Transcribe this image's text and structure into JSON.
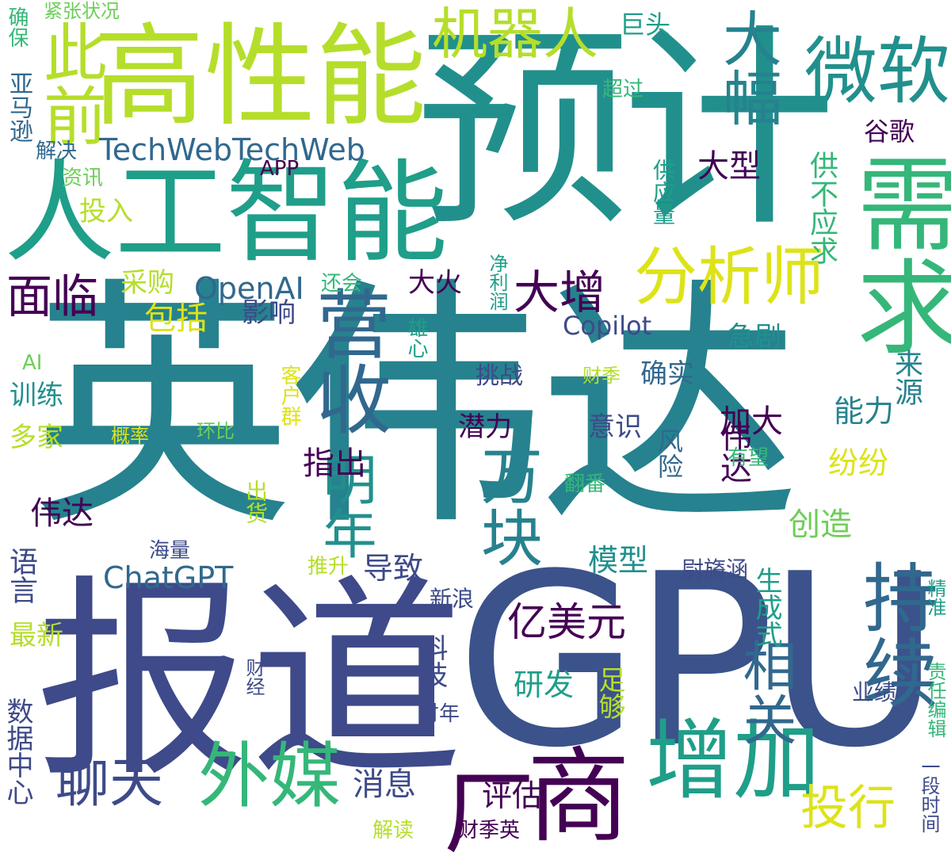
{
  "words": {
    "yingweida": "英伟达",
    "yuji": "预计",
    "gpu": "GPU",
    "baodao": "报道",
    "gaoxingneng": "高性能",
    "rengongzhineng": "人工智能",
    "xuqiu": "需求",
    "ruanwei": "微软",
    "jiqiren": "机器人",
    "cichian": "此前",
    "dafu": "大幅",
    "yingshou": "营收",
    "fenxishi": "分析师",
    "shang": "商",
    "zengjia": "增加",
    "waimei": "外媒",
    "chang": "厂",
    "chixu": "持续",
    "wankuai": "万块",
    "mingnian": "明年",
    "xiangguan": "相关",
    "liaotian": "聊天",
    "dazeng": "大增",
    "mianlin": "面临",
    "techweb": "TechWebTechWeb",
    "openai": "OpenAI",
    "chatgpt": "ChatGPT",
    "copilot": "Copilot",
    "touhang": "投行",
    "yimeiyuan": "亿美元",
    "gongbuyingqiu": "供不应求",
    "weida": "伟达",
    "yamaxun": "亚马逊",
    "queba": "确保",
    "jinzhang": "紧张状况",
    "jutou": "巨头",
    "chaoguo": "超过",
    "guge": "谷歌",
    "daxing": "大型",
    "gongyingliang": "供应量",
    "jiejue": "解决",
    "zixun": "资讯",
    "app": "APP",
    "touru": "投入",
    "caigou": "采购",
    "haihui": "还会",
    "jingrun": "净利润",
    "dahuo": "大火",
    "baokuo": "包括",
    "yingxiang": "影响",
    "ai": "AI",
    "xiongxin": "雄心",
    "kehuqun": "客户群",
    "caiji": "财季",
    "queshi": "确实",
    "jiju": "急剧",
    "laiyuan": "来源",
    "xunlian": "训练",
    "tiaozhan": "挑战",
    "duojia": "多家",
    "gailv": "概率",
    "huanbi": "环比",
    "qianli": "潜力",
    "yishi": "意识",
    "jiada": "加大",
    "nengli": "能力",
    "fenfen": "纷纷",
    "youwang": "有望",
    "zhichu": "指出",
    "fengxian": "风险",
    "fanfan": "翻番",
    "chuhuo": "出货",
    "chuangzao": "创造",
    "moxing": "模型",
    "haiiliang": "海量",
    "tuisheng": "推升",
    "daozhi": "导致",
    "weiqihan": "尉旖涵",
    "yuyan": "语言",
    "xinlang": "新浪",
    "shengchengshi": "生成式",
    "zuixin": "最新",
    "keji": "科技",
    "yanfa": "研发",
    "zugou": "足够",
    "yeji": "业绩",
    "zebian": "责任编辑",
    "jingzhun": "精准",
    "shujuzhongxin": "数据中心",
    "caijing": "财经",
    "cainian": "财年",
    "yiduanshijian": "一段时间",
    "xiaoxi": "消息",
    "pinggu": "评估",
    "jiedu": "解读",
    "caijiying": "财季英"
  },
  "colors": {
    "deep_purple": "#440154",
    "indigo": "#3e4a89",
    "slate_blue": "#3b528b",
    "blue": "#31688e",
    "teal_blue": "#26828e",
    "teal": "#21908d",
    "sea_green": "#1f9e89",
    "green": "#35b779",
    "light_green": "#6ece58",
    "lime": "#b5de2b",
    "yellow": "#dde318"
  }
}
